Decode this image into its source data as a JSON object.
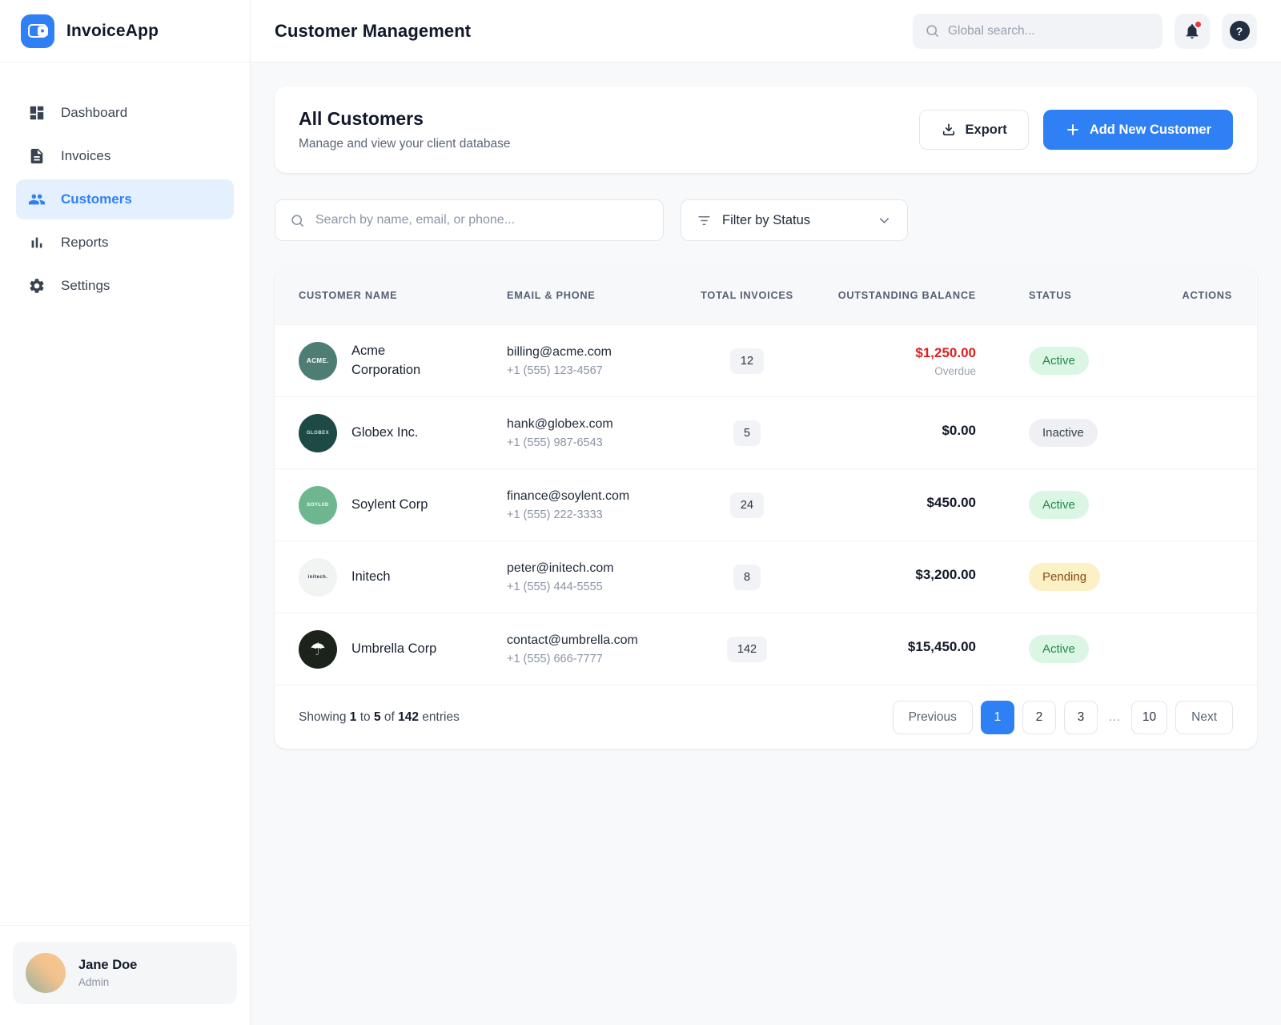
{
  "app": {
    "name": "InvoiceApp"
  },
  "colors": {
    "accent": "#2f80f5",
    "overdue_red": "#de2020",
    "active_green": "#1d8a47",
    "pending_amber": "#8a4a10",
    "notification_red": "#e23b3b"
  },
  "sidebar": {
    "items": [
      {
        "label": "Dashboard",
        "icon": "dashboard-icon",
        "active": false
      },
      {
        "label": "Invoices",
        "icon": "invoice-icon",
        "active": false
      },
      {
        "label": "Customers",
        "icon": "customers-icon",
        "active": true
      },
      {
        "label": "Reports",
        "icon": "reports-icon",
        "active": false
      },
      {
        "label": "Settings",
        "icon": "settings-icon",
        "active": false
      }
    ],
    "user": {
      "name": "Jane Doe",
      "role": "Admin"
    }
  },
  "header": {
    "title": "Customer Management",
    "search_placeholder": "Global search...",
    "help_glyph": "?"
  },
  "toolbar": {
    "title": "All Customers",
    "subtitle": "Manage and view your client database",
    "export_label": "Export",
    "add_label": "Add New Customer"
  },
  "filters": {
    "search_placeholder": "Search by name, email, or phone...",
    "status_filter_label": "Filter by Status"
  },
  "table": {
    "columns": [
      "CUSTOMER NAME",
      "EMAIL & PHONE",
      "TOTAL INVOICES",
      "OUTSTANDING BALANCE",
      "STATUS",
      "ACTIONS"
    ],
    "rows": [
      {
        "name": "Acme Corporation",
        "avatar": {
          "text": "ACME.",
          "bg": "#4e7d75",
          "fg": "#ffffff"
        },
        "email": "billing@acme.com",
        "phone": "+1 (555) 123-4567",
        "invoices": "12",
        "balance": "$1,250.00",
        "balance_note": "Overdue",
        "overdue": true,
        "status": "Active"
      },
      {
        "name": "Globex Inc.",
        "avatar": {
          "text": "GLOBEX",
          "bg": "#1d4a45",
          "fg": "#cfe3da"
        },
        "email": "hank@globex.com",
        "phone": "+1 (555) 987-6543",
        "invoices": "5",
        "balance": "$0.00",
        "status": "Inactive"
      },
      {
        "name": "Soylent Corp",
        "avatar": {
          "text": "SOYLIID",
          "bg": "#6db690",
          "fg": "#ffffff"
        },
        "email": "finance@soylent.com",
        "phone": "+1 (555) 222-3333",
        "invoices": "24",
        "balance": "$450.00",
        "status": "Active"
      },
      {
        "name": "Initech",
        "avatar": {
          "text": "initech.",
          "bg": "#f2f3f3",
          "fg": "#2b3647"
        },
        "email": "peter@initech.com",
        "phone": "+1 (555) 444-5555",
        "invoices": "8",
        "balance": "$3,200.00",
        "status": "Pending"
      },
      {
        "name": "Umbrella Corp",
        "avatar": {
          "glyph": "☂",
          "bg": "#1c231d",
          "fg": "#ffffff"
        },
        "email": "contact@umbrella.com",
        "phone": "+1 (555) 666-7777",
        "invoices": "142",
        "balance": "$15,450.00",
        "status": "Active"
      }
    ]
  },
  "pagination": {
    "summary": [
      {
        "t": "Showing ",
        "b": false
      },
      {
        "t": "1",
        "b": true
      },
      {
        "t": " to ",
        "b": false
      },
      {
        "t": "5",
        "b": true
      },
      {
        "t": " of ",
        "b": false
      },
      {
        "t": "142",
        "b": true
      },
      {
        "t": " entries",
        "b": false
      }
    ],
    "prev_label": "Previous",
    "next_label": "Next",
    "pages": [
      {
        "label": "1",
        "active": true
      },
      {
        "label": "2"
      },
      {
        "label": "3"
      },
      {
        "label": "…",
        "ellipsis": true
      },
      {
        "label": "10"
      }
    ]
  }
}
